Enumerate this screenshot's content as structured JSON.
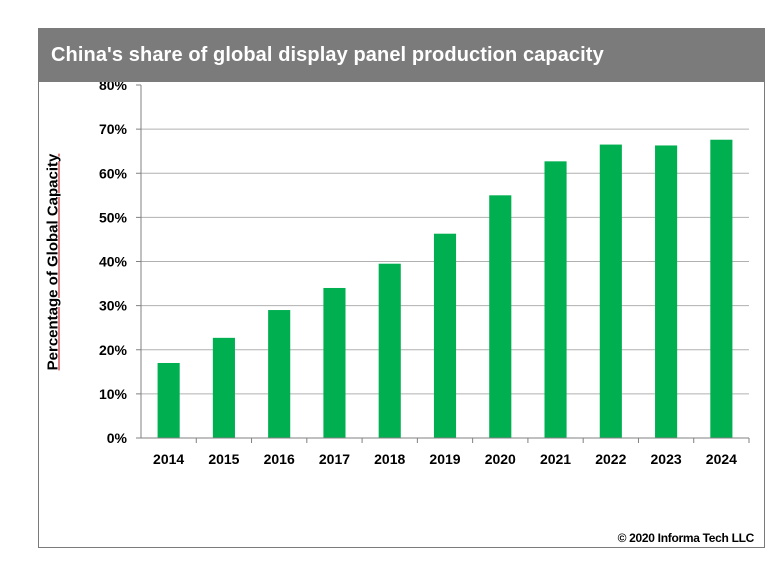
{
  "title": "China's share of global display panel production capacity",
  "copyright": "© 2020 Informa Tech LLC",
  "colors": {
    "bar": "#00b050",
    "title_bg": "#7b7b7b",
    "grid": "#b0b0b0"
  },
  "chart_data": {
    "type": "bar",
    "title": "China's share of global display panel production capacity",
    "xlabel": "",
    "ylabel": "Percentage of Global Capacity",
    "categories": [
      "2014",
      "2015",
      "2016",
      "2017",
      "2018",
      "2019",
      "2020",
      "2021",
      "2022",
      "2023",
      "2024"
    ],
    "values": [
      17,
      22.7,
      29,
      34,
      39.5,
      46.3,
      55,
      62.7,
      66.5,
      66.3,
      67.6
    ],
    "ylim": [
      0,
      80
    ],
    "yticks": [
      "0%",
      "10%",
      "20%",
      "30%",
      "40%",
      "50%",
      "60%",
      "70%",
      "80%"
    ],
    "grid": true,
    "legend": "none"
  }
}
